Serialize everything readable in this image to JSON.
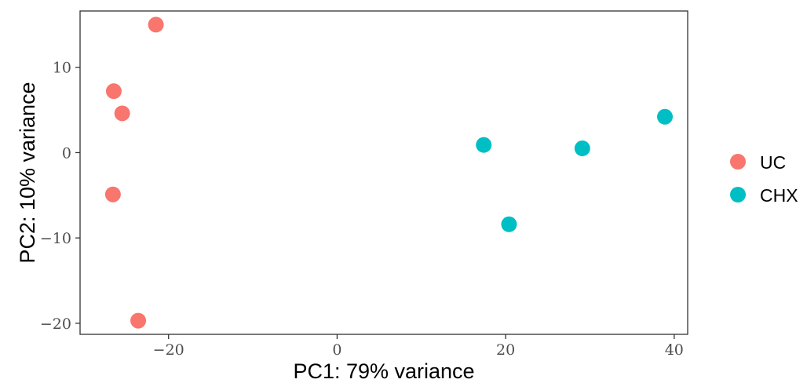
{
  "chart_data": {
    "type": "scatter",
    "xlabel": "PC1: 79% variance",
    "ylabel": "PC2: 10% variance",
    "xlim": [
      -30.5,
      41.6
    ],
    "ylim": [
      -21.3,
      16.6
    ],
    "x_ticks": [
      -20,
      0,
      20,
      40
    ],
    "x_tick_labels": [
      "−20",
      "0",
      "20",
      "40"
    ],
    "y_ticks": [
      -20,
      -10,
      0,
      10
    ],
    "y_tick_labels": [
      "−20",
      "−10",
      "0",
      "10"
    ],
    "grid": false,
    "legend_position": "right",
    "series": [
      {
        "name": "UC",
        "color": "#F8766D",
        "points": [
          {
            "x": -21.5,
            "y": 15.0
          },
          {
            "x": -26.5,
            "y": 7.2
          },
          {
            "x": -25.5,
            "y": 4.6
          },
          {
            "x": -26.6,
            "y": -4.9
          },
          {
            "x": -23.6,
            "y": -19.7
          }
        ]
      },
      {
        "name": "CHX",
        "color": "#00BFC4",
        "points": [
          {
            "x": 17.4,
            "y": 0.9
          },
          {
            "x": 20.4,
            "y": -8.4
          },
          {
            "x": 29.1,
            "y": 0.5
          },
          {
            "x": 38.9,
            "y": 4.2
          }
        ]
      }
    ]
  }
}
